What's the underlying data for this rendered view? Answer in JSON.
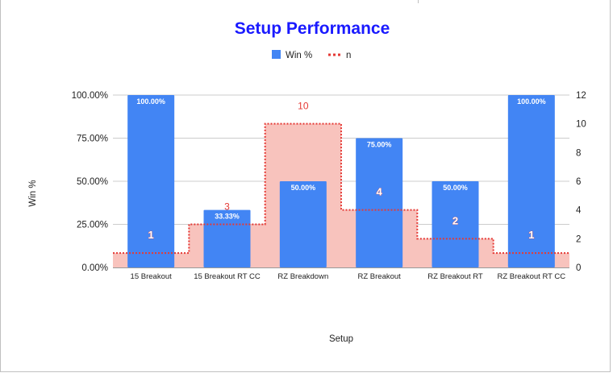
{
  "chart_data": {
    "type": "bar",
    "title": "Setup Performance",
    "xlabel": "Setup",
    "ylabel": "Win %",
    "categories": [
      "15 Breakout",
      "15 Breakout RT CC",
      "RZ Breakdown",
      "RZ Breakout",
      "RZ Breakout RT",
      "RZ Breakout RT CC"
    ],
    "series": [
      {
        "name": "Win %",
        "type": "bar",
        "axis": "left",
        "color": "#4285f4",
        "values": [
          100,
          33.33,
          50,
          75,
          50,
          100
        ],
        "labels": [
          "100.00%",
          "33.33%",
          "50.00%",
          "75.00%",
          "50.00%",
          "100.00%"
        ]
      },
      {
        "name": "n",
        "type": "stepped-area",
        "axis": "right",
        "color": "#e53935",
        "fill": "#f8c3bd",
        "values": [
          1,
          3,
          10,
          4,
          2,
          1
        ],
        "labels": [
          "1",
          "3",
          "10",
          "4",
          "2",
          "1"
        ]
      }
    ],
    "y_left": {
      "range": [
        0,
        100
      ],
      "ticks": [
        0,
        25,
        50,
        75,
        100
      ],
      "tick_labels": [
        "0.00%",
        "25.00%",
        "50.00%",
        "75.00%",
        "100.00%"
      ]
    },
    "y_right": {
      "range": [
        0,
        12
      ],
      "ticks": [
        0,
        2,
        4,
        6,
        8,
        10,
        12
      ],
      "tick_labels": [
        "0",
        "2",
        "4",
        "6",
        "8",
        "10",
        "12"
      ]
    },
    "grid": true,
    "legend_position": "top"
  }
}
